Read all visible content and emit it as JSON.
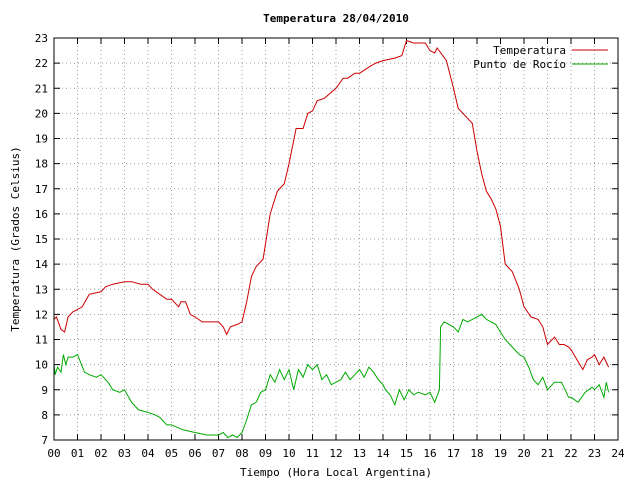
{
  "chart_data": {
    "type": "line",
    "title": "Temperatura 28/04/2010",
    "xlabel": "Tiempo (Hora Local Argentina)",
    "ylabel": "Temperatura (Grados Celsius)",
    "xlim": [
      0,
      24
    ],
    "ylim": [
      7,
      23
    ],
    "x_ticks": [
      "00",
      "01",
      "02",
      "03",
      "04",
      "05",
      "06",
      "07",
      "08",
      "09",
      "10",
      "11",
      "12",
      "13",
      "14",
      "15",
      "16",
      "17",
      "18",
      "19",
      "20",
      "21",
      "22",
      "23",
      "24"
    ],
    "y_ticks": [
      "7",
      "8",
      "9",
      "10",
      "11",
      "12",
      "13",
      "14",
      "15",
      "16",
      "17",
      "18",
      "19",
      "20",
      "21",
      "22",
      "23"
    ],
    "grid": true,
    "legend_position": "top-right",
    "series": [
      {
        "name": "Temperatura",
        "color": "#cc0000",
        "x": [
          0.0,
          0.1,
          0.3,
          0.45,
          0.6,
          0.8,
          1.0,
          1.2,
          1.5,
          2.0,
          2.2,
          2.5,
          3.0,
          3.3,
          3.7,
          4.0,
          4.2,
          4.5,
          4.8,
          5.0,
          5.3,
          5.4,
          5.6,
          5.8,
          6.0,
          6.3,
          6.7,
          7.0,
          7.2,
          7.35,
          7.5,
          7.8,
          8.0,
          8.2,
          8.4,
          8.6,
          8.9,
          9.2,
          9.5,
          9.8,
          10.0,
          10.3,
          10.6,
          10.8,
          11.0,
          11.2,
          11.5,
          12.0,
          12.3,
          12.5,
          12.8,
          13.0,
          13.5,
          13.7,
          14.0,
          14.5,
          14.8,
          15.0,
          15.3,
          15.6,
          15.8,
          16.0,
          16.2,
          16.3,
          16.7,
          17.0,
          17.2,
          17.5,
          17.8,
          18.0,
          18.2,
          18.4,
          18.6,
          18.8,
          19.0,
          19.2,
          19.5,
          19.8,
          20.0,
          20.3,
          20.6,
          20.8,
          21.0,
          21.3,
          21.5,
          21.7,
          21.9,
          22.0,
          22.5,
          22.7,
          22.9,
          23.0,
          23.2,
          23.4,
          23.6
        ],
        "y": [
          11.8,
          11.9,
          11.4,
          11.3,
          11.9,
          12.1,
          12.2,
          12.3,
          12.8,
          12.9,
          13.1,
          13.2,
          13.3,
          13.3,
          13.2,
          13.2,
          13.0,
          12.8,
          12.6,
          12.6,
          12.3,
          12.5,
          12.5,
          12.0,
          11.9,
          11.7,
          11.7,
          11.7,
          11.5,
          11.2,
          11.5,
          11.6,
          11.7,
          12.5,
          13.5,
          13.9,
          14.2,
          16.0,
          16.9,
          17.2,
          18.0,
          19.4,
          19.4,
          20.0,
          20.1,
          20.5,
          20.6,
          21.0,
          21.4,
          21.4,
          21.6,
          21.6,
          21.9,
          22.0,
          22.1,
          22.2,
          22.3,
          22.9,
          22.8,
          22.8,
          22.8,
          22.5,
          22.4,
          22.6,
          22.1,
          21.0,
          20.2,
          19.9,
          19.6,
          18.5,
          17.6,
          16.9,
          16.6,
          16.2,
          15.5,
          14.0,
          13.7,
          13.0,
          12.3,
          11.9,
          11.8,
          11.5,
          10.8,
          11.1,
          10.8,
          10.8,
          10.7,
          10.6,
          9.8,
          10.2,
          10.3,
          10.4,
          10.0,
          10.3,
          9.9
        ]
      },
      {
        "name": "Punto de Rocío",
        "color": "#00aa00",
        "x": [
          0.0,
          0.05,
          0.15,
          0.3,
          0.4,
          0.5,
          0.6,
          0.8,
          1.0,
          1.3,
          1.5,
          1.8,
          2.0,
          2.3,
          2.5,
          2.8,
          3.0,
          3.3,
          3.6,
          4.0,
          4.3,
          4.5,
          4.8,
          5.0,
          5.5,
          6.0,
          6.5,
          7.0,
          7.2,
          7.4,
          7.6,
          7.8,
          8.0,
          8.2,
          8.4,
          8.6,
          8.8,
          9.0,
          9.2,
          9.4,
          9.6,
          9.8,
          10.0,
          10.2,
          10.4,
          10.6,
          10.8,
          11.0,
          11.2,
          11.4,
          11.6,
          11.8,
          12.0,
          12.2,
          12.4,
          12.6,
          12.8,
          13.0,
          13.2,
          13.4,
          13.6,
          13.8,
          14.0,
          14.1,
          14.3,
          14.5,
          14.7,
          14.9,
          15.1,
          15.3,
          15.5,
          15.8,
          16.0,
          16.2,
          16.4,
          16.45,
          16.6,
          16.8,
          17.0,
          17.2,
          17.4,
          17.6,
          17.8,
          18.0,
          18.2,
          18.4,
          18.6,
          18.8,
          19.0,
          19.2,
          19.4,
          19.6,
          19.8,
          20.0,
          20.2,
          20.4,
          20.6,
          20.8,
          21.0,
          21.3,
          21.6,
          21.9,
          22.0,
          22.3,
          22.6,
          22.9,
          23.0,
          23.2,
          23.4,
          23.5,
          23.6
        ],
        "y": [
          10.0,
          9.6,
          9.9,
          9.7,
          10.4,
          10.0,
          10.3,
          10.3,
          10.4,
          9.7,
          9.6,
          9.5,
          9.6,
          9.3,
          9.0,
          8.9,
          9.0,
          8.5,
          8.2,
          8.1,
          8.0,
          7.9,
          7.6,
          7.6,
          7.4,
          7.3,
          7.2,
          7.2,
          7.3,
          7.1,
          7.2,
          7.1,
          7.3,
          7.8,
          8.4,
          8.5,
          8.9,
          9.0,
          9.6,
          9.3,
          9.8,
          9.4,
          9.8,
          9.0,
          9.8,
          9.5,
          10.0,
          9.8,
          10.0,
          9.4,
          9.6,
          9.2,
          9.3,
          9.4,
          9.7,
          9.4,
          9.6,
          9.8,
          9.5,
          9.9,
          9.7,
          9.4,
          9.2,
          9.0,
          8.8,
          8.4,
          9.0,
          8.6,
          9.0,
          8.8,
          8.9,
          8.8,
          8.9,
          8.5,
          9.0,
          11.5,
          11.7,
          11.6,
          11.5,
          11.3,
          11.8,
          11.7,
          11.8,
          11.9,
          12.0,
          11.8,
          11.7,
          11.6,
          11.3,
          11.0,
          10.8,
          10.6,
          10.4,
          10.3,
          9.9,
          9.4,
          9.2,
          9.5,
          9.0,
          9.3,
          9.3,
          8.7,
          8.7,
          8.5,
          8.9,
          9.1,
          9.0,
          9.2,
          8.7,
          9.3,
          8.9
        ]
      }
    ]
  }
}
